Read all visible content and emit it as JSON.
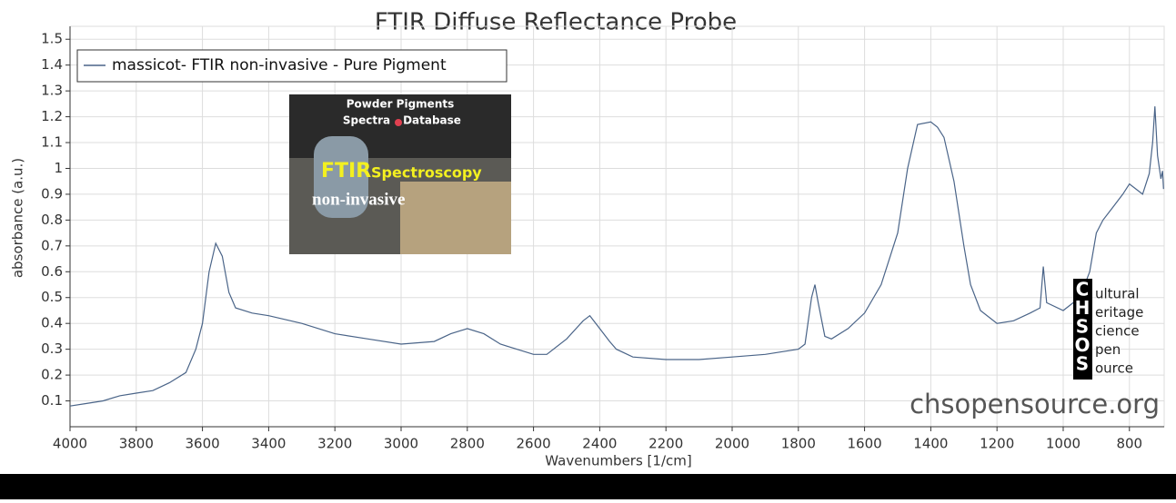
{
  "chart_data": {
    "type": "line",
    "title": "FTIR Diffuse Reflectance Probe",
    "xlabel": "Wavenumbers [1/cm]",
    "ylabel": "absorbance (a.u.)",
    "x": [
      4000,
      3950,
      3900,
      3850,
      3800,
      3750,
      3700,
      3650,
      3620,
      3600,
      3580,
      3560,
      3540,
      3520,
      3500,
      3450,
      3400,
      3300,
      3200,
      3100,
      3000,
      2900,
      2850,
      2800,
      2750,
      2700,
      2600,
      2560,
      2500,
      2450,
      2430,
      2400,
      2370,
      2350,
      2300,
      2200,
      2100,
      2000,
      1900,
      1800,
      1780,
      1760,
      1750,
      1740,
      1720,
      1700,
      1650,
      1600,
      1550,
      1500,
      1470,
      1440,
      1400,
      1380,
      1360,
      1330,
      1300,
      1280,
      1250,
      1200,
      1150,
      1100,
      1070,
      1060,
      1050,
      1000,
      950,
      920,
      900,
      880,
      850,
      820,
      800,
      760,
      740,
      730,
      723,
      715,
      705,
      700,
      697
    ],
    "series": [
      {
        "name": "massicot- FTIR non-invasive - Pure Pigment",
        "color": "#4a6488",
        "values": [
          0.08,
          0.09,
          0.1,
          0.12,
          0.13,
          0.14,
          0.17,
          0.21,
          0.3,
          0.4,
          0.6,
          0.71,
          0.66,
          0.52,
          0.46,
          0.44,
          0.43,
          0.4,
          0.36,
          0.34,
          0.32,
          0.33,
          0.36,
          0.38,
          0.36,
          0.32,
          0.28,
          0.28,
          0.34,
          0.41,
          0.43,
          0.38,
          0.33,
          0.3,
          0.27,
          0.26,
          0.26,
          0.27,
          0.28,
          0.3,
          0.32,
          0.5,
          0.55,
          0.48,
          0.35,
          0.34,
          0.38,
          0.44,
          0.55,
          0.75,
          1.0,
          1.17,
          1.18,
          1.16,
          1.12,
          0.95,
          0.7,
          0.55,
          0.45,
          0.4,
          0.41,
          0.44,
          0.46,
          0.62,
          0.48,
          0.45,
          0.5,
          0.6,
          0.75,
          0.8,
          0.85,
          0.9,
          0.94,
          0.9,
          0.98,
          1.1,
          1.24,
          1.05,
          0.96,
          0.99,
          0.92
        ]
      }
    ],
    "xlim": [
      4000,
      695
    ],
    "ylim": [
      0,
      1.55
    ],
    "xticks": [
      4000,
      3800,
      3600,
      3400,
      3200,
      3000,
      2800,
      2600,
      2400,
      2200,
      2000,
      1800,
      1600,
      1400,
      1200,
      1000,
      800
    ],
    "yticks": [
      0.1,
      0.2,
      0.3,
      0.4,
      0.5,
      0.6,
      0.7,
      0.8,
      0.9,
      1,
      1.1,
      1.2,
      1.3,
      1.4,
      1.5
    ],
    "grid": true,
    "legend": "upper left",
    "inset_texts": [
      "Powder Pigments",
      "Spectra",
      "Database",
      "FTIR",
      "Spectroscopy",
      "non-invasive"
    ],
    "logo_letters": [
      "C",
      "H",
      "S",
      "O",
      "S"
    ],
    "logo_words": [
      "ultural",
      "eritage",
      "cience",
      "pen",
      "ource"
    ],
    "watermark": "chsopensource.org"
  }
}
